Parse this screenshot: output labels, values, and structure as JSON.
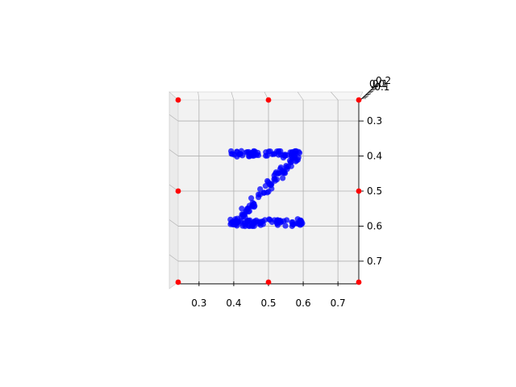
{
  "chart_data": {
    "type": "scatter",
    "title": "",
    "xlabel": "",
    "ylabel": "",
    "zlabel": "",
    "xlim": [
      0.24,
      0.76
    ],
    "ylim": [
      0.24,
      0.76
    ],
    "y_inverted": true,
    "grid": true,
    "x_ticks": [
      "0.3",
      "0.4",
      "0.5",
      "0.6",
      "0.7"
    ],
    "y_ticks": [
      "0.3",
      "0.4",
      "0.5",
      "0.6",
      "0.7"
    ],
    "z_ticks": [
      "0.2",
      "0.1",
      "0.0",
      "-0.1"
    ],
    "z_tick_labels_shown": [
      "0.2",
      "0.1",
      "0.0",
      "-0.1"
    ],
    "colors": {
      "series": "#0000ff",
      "markers": "#ff0000",
      "pane": "#f2f2f2",
      "grid": "#b0b0b0"
    },
    "series": [
      {
        "shape": "letter Z",
        "color": "#0000ff",
        "top_bar": {
          "x_range": [
            0.39,
            0.59
          ],
          "y": 0.395
        },
        "diagonal": {
          "from": [
            0.58,
            0.4
          ],
          "to": [
            0.41,
            0.585
          ]
        },
        "bottom_bar": {
          "x_range": [
            0.39,
            0.6
          ],
          "y": 0.59
        }
      }
    ],
    "red_markers": [
      {
        "x": 0.24,
        "y": 0.24
      },
      {
        "x": 0.5,
        "y": 0.24
      },
      {
        "x": 0.76,
        "y": 0.24
      },
      {
        "x": 0.24,
        "y": 0.5
      },
      {
        "x": 0.76,
        "y": 0.5
      },
      {
        "x": 0.24,
        "y": 0.76
      },
      {
        "x": 0.5,
        "y": 0.76
      },
      {
        "x": 0.76,
        "y": 0.76
      }
    ]
  }
}
